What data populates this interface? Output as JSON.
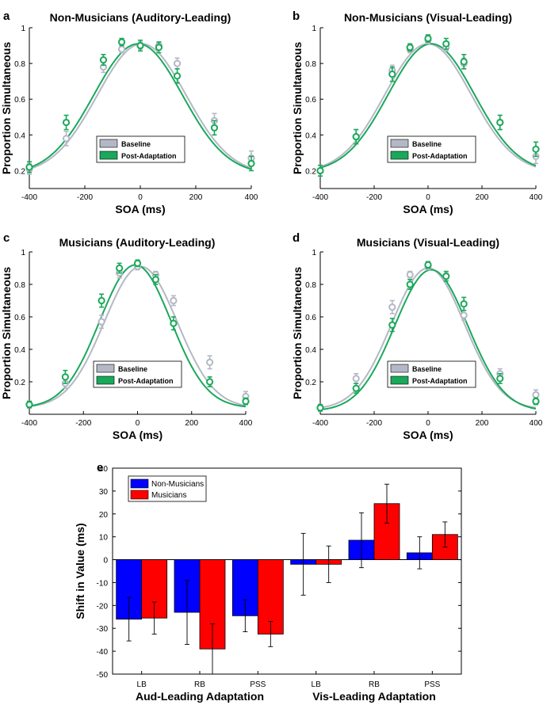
{
  "colors": {
    "baseline": "#b4b8c6",
    "post_adaptation": "#1aa85a",
    "non_musicians": "#0000ff",
    "musicians": "#ff0000"
  },
  "chart_data": [
    {
      "id": "a",
      "letter": "a",
      "type": "scatter",
      "title": "Non-Musicians (Auditory-Leading)",
      "xlabel": "SOA (ms)",
      "ylabel": "Proportion Simultaneous",
      "xlim": [
        -400,
        400
      ],
      "ylim": [
        0.1,
        1.0
      ],
      "xticks": [
        -400,
        -200,
        0,
        200,
        400
      ],
      "yticks": [
        0.2,
        0.4,
        0.6,
        0.8,
        1
      ],
      "x": [
        -400,
        -267,
        -133,
        -67,
        0,
        67,
        133,
        267,
        400
      ],
      "legend": [
        "Baseline",
        "Post-Adaptation"
      ],
      "series": [
        {
          "name": "Baseline",
          "y": [
            0.21,
            0.38,
            0.78,
            0.88,
            0.9,
            0.9,
            0.8,
            0.48,
            0.27
          ],
          "err": [
            0.03,
            0.04,
            0.03,
            0.02,
            0.02,
            0.02,
            0.03,
            0.04,
            0.04
          ],
          "fit": {
            "amp": 0.73,
            "mu": 5,
            "sigma": 160,
            "base": 0.18
          }
        },
        {
          "name": "Post-Adaptation",
          "y": [
            0.22,
            0.47,
            0.82,
            0.92,
            0.9,
            0.89,
            0.73,
            0.44,
            0.24
          ],
          "err": [
            0.03,
            0.04,
            0.03,
            0.02,
            0.03,
            0.03,
            0.04,
            0.04,
            0.04
          ],
          "fit": {
            "amp": 0.73,
            "mu": -8,
            "sigma": 160,
            "base": 0.18
          }
        }
      ]
    },
    {
      "id": "b",
      "letter": "b",
      "type": "scatter",
      "title": "Non-Musicians (Visual-Leading)",
      "xlabel": "SOA (ms)",
      "ylabel": "Proportion Simultaneous",
      "xlim": [
        -400,
        400
      ],
      "ylim": [
        0.1,
        1.0
      ],
      "xticks": [
        -400,
        -200,
        0,
        200,
        400
      ],
      "yticks": [
        0.2,
        0.4,
        0.6,
        0.8,
        1
      ],
      "x": [
        -400,
        -267,
        -133,
        -67,
        0,
        67,
        133,
        267,
        400
      ],
      "legend": [
        "Baseline",
        "Post-Adaptation"
      ],
      "series": [
        {
          "name": "Baseline",
          "y": [
            0.2,
            0.39,
            0.76,
            0.88,
            0.93,
            0.89,
            0.8,
            0.47,
            0.28
          ],
          "err": [
            0.03,
            0.04,
            0.03,
            0.02,
            0.02,
            0.02,
            0.03,
            0.04,
            0.04
          ],
          "fit": {
            "amp": 0.72,
            "mu": 0,
            "sigma": 160,
            "base": 0.19
          }
        },
        {
          "name": "Post-Adaptation",
          "y": [
            0.2,
            0.39,
            0.74,
            0.89,
            0.94,
            0.91,
            0.81,
            0.47,
            0.32
          ],
          "err": [
            0.03,
            0.04,
            0.04,
            0.02,
            0.02,
            0.03,
            0.04,
            0.04,
            0.04
          ],
          "fit": {
            "amp": 0.72,
            "mu": 12,
            "sigma": 160,
            "base": 0.19
          }
        }
      ]
    },
    {
      "id": "c",
      "letter": "c",
      "type": "scatter",
      "title": "Musicians (Auditory-Leading)",
      "xlabel": "SOA (ms)",
      "ylabel": "Proportion Simultaneous",
      "xlim": [
        -400,
        400
      ],
      "ylim": [
        0.0,
        1.0
      ],
      "xticks": [
        -400,
        -200,
        0,
        200,
        400
      ],
      "yticks": [
        0.2,
        0.4,
        0.6,
        0.8,
        1
      ],
      "x": [
        -400,
        -267,
        -133,
        -67,
        0,
        67,
        133,
        267,
        400
      ],
      "legend": [
        "Baseline",
        "Post-Adaptation"
      ],
      "series": [
        {
          "name": "Baseline",
          "y": [
            0.06,
            0.19,
            0.57,
            0.87,
            0.91,
            0.86,
            0.7,
            0.32,
            0.11
          ],
          "err": [
            0.02,
            0.03,
            0.04,
            0.03,
            0.02,
            0.02,
            0.03,
            0.04,
            0.03
          ],
          "fit": {
            "amp": 0.87,
            "mu": 12,
            "sigma": 135,
            "base": 0.04
          }
        },
        {
          "name": "Post-Adaptation",
          "y": [
            0.06,
            0.23,
            0.7,
            0.9,
            0.93,
            0.83,
            0.56,
            0.2,
            0.08
          ],
          "err": [
            0.02,
            0.04,
            0.04,
            0.03,
            0.02,
            0.03,
            0.04,
            0.03,
            0.02
          ],
          "fit": {
            "amp": 0.88,
            "mu": -8,
            "sigma": 132,
            "base": 0.04
          }
        }
      ]
    },
    {
      "id": "d",
      "letter": "d",
      "type": "scatter",
      "title": "Musicians (Visual-Leading)",
      "xlabel": "SOA (ms)",
      "ylabel": "Proportion Simultaneous",
      "xlim": [
        -400,
        400
      ],
      "ylim": [
        0.0,
        1.0
      ],
      "xticks": [
        -400,
        -200,
        0,
        200,
        400
      ],
      "yticks": [
        0.2,
        0.4,
        0.6,
        0.8,
        1
      ],
      "x": [
        -400,
        -267,
        -133,
        -67,
        0,
        67,
        133,
        267,
        400
      ],
      "legend": [
        "Baseline",
        "Post-Adaptation"
      ],
      "series": [
        {
          "name": "Baseline",
          "y": [
            0.04,
            0.22,
            0.66,
            0.86,
            0.91,
            0.85,
            0.61,
            0.25,
            0.12
          ],
          "err": [
            0.02,
            0.03,
            0.04,
            0.02,
            0.02,
            0.02,
            0.03,
            0.03,
            0.03
          ],
          "fit": {
            "amp": 0.87,
            "mu": 0,
            "sigma": 135,
            "base": 0.03
          }
        },
        {
          "name": "Post-Adaptation",
          "y": [
            0.04,
            0.16,
            0.55,
            0.8,
            0.92,
            0.85,
            0.68,
            0.22,
            0.08
          ],
          "err": [
            0.02,
            0.03,
            0.04,
            0.03,
            0.02,
            0.03,
            0.04,
            0.03,
            0.02
          ],
          "fit": {
            "amp": 0.87,
            "mu": 12,
            "sigma": 135,
            "base": 0.02
          }
        }
      ]
    },
    {
      "id": "e",
      "letter": "e",
      "type": "bar",
      "title": "",
      "ylabel": "Shift in Value (ms)",
      "ylim": [
        -50,
        40
      ],
      "yticks": [
        -50,
        -40,
        -30,
        -20,
        -10,
        0,
        10,
        20,
        30,
        40
      ],
      "categories": [
        "LB",
        "RB",
        "PSS",
        "LB",
        "RB",
        "PSS"
      ],
      "group_labels": [
        "Aud-Leading Adaptation",
        "Vis-Leading Adaptation"
      ],
      "series": [
        {
          "name": "Non-Musicians",
          "values": [
            -26,
            -23,
            -24.5,
            -2,
            8.5,
            3
          ],
          "err": [
            9.5,
            14,
            7,
            13.5,
            12,
            7
          ]
        },
        {
          "name": "Musicians",
          "values": [
            -25.5,
            -39,
            -32.5,
            -2,
            24.5,
            11
          ],
          "err": [
            7,
            11,
            5.5,
            8,
            8.5,
            5.5
          ]
        }
      ]
    }
  ]
}
